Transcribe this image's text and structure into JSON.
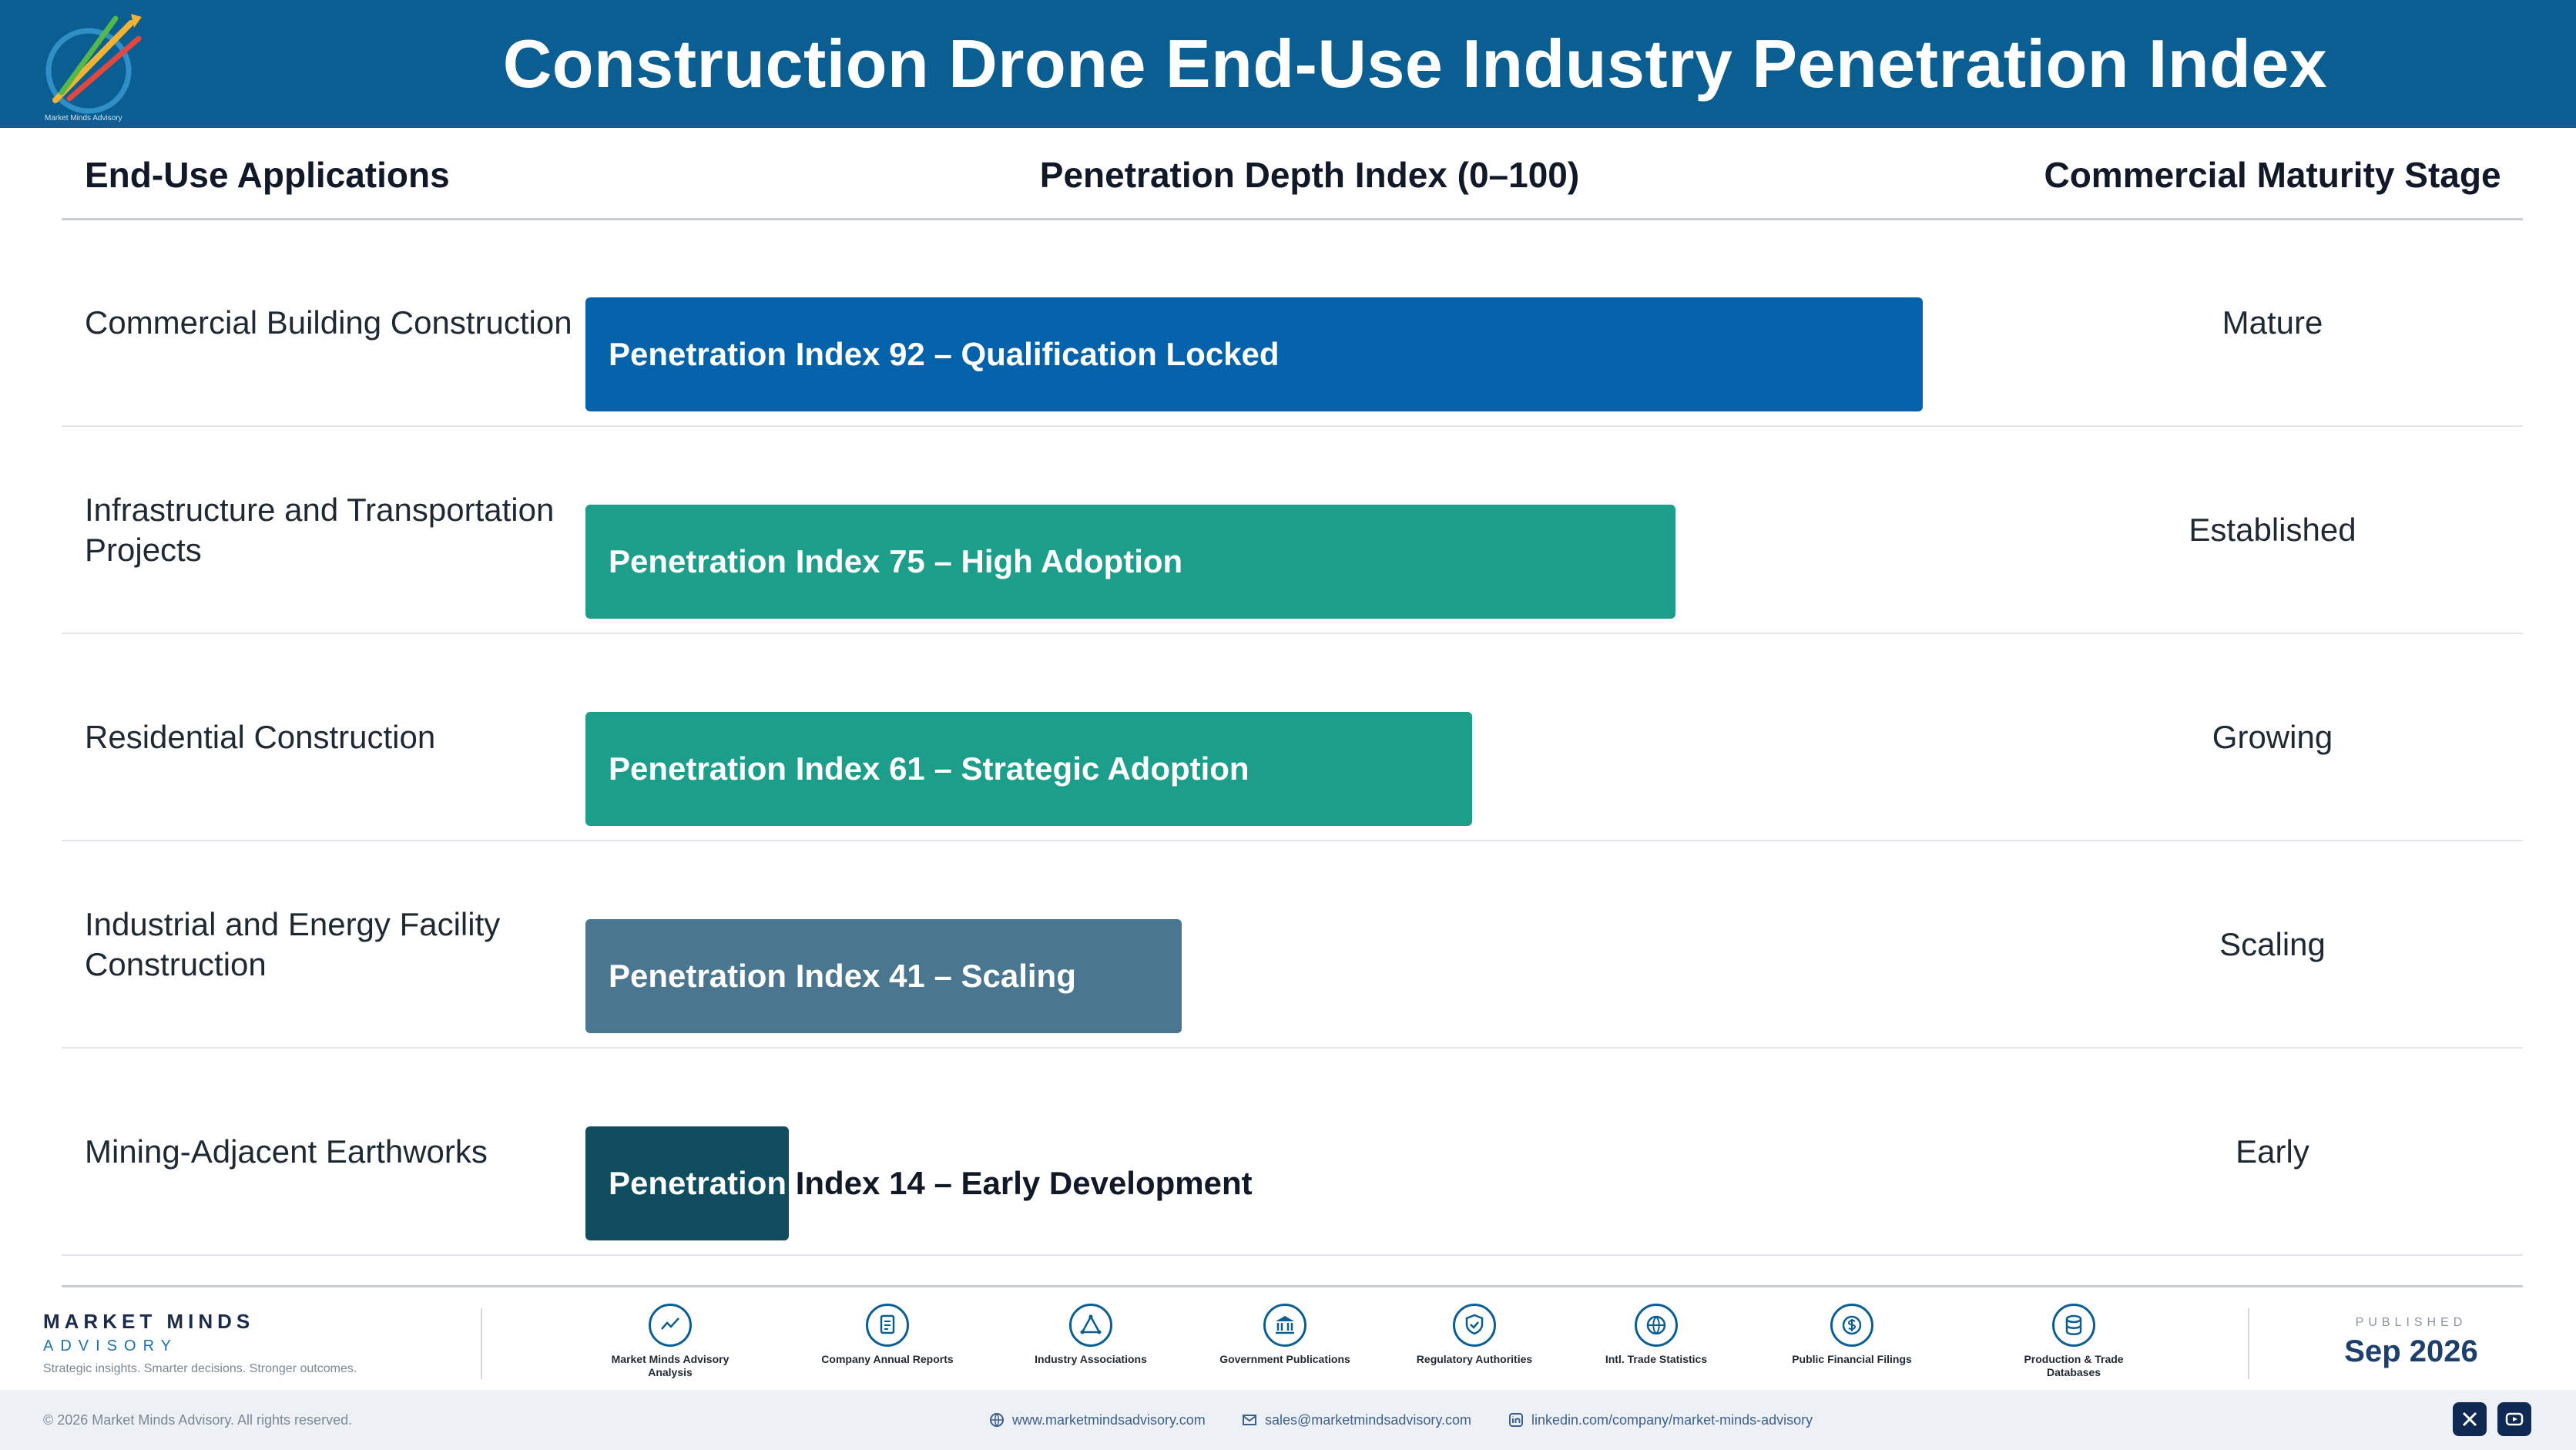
{
  "header": {
    "title": "Construction Drone End-Use Industry Penetration Index",
    "logo_text": "Market Minds Advisory"
  },
  "columns": {
    "applications": "End-Use Applications",
    "penetration": "Penetration Depth Index (0–100)",
    "maturity": "Commercial Maturity Stage"
  },
  "chart_data": {
    "type": "bar",
    "orientation": "horizontal",
    "xlabel": "Penetration Depth Index (0–100)",
    "xlim": [
      0,
      100
    ],
    "categories": [
      "Commercial Building Construction",
      "Infrastructure and Transportation Projects",
      "Residential Construction",
      "Industrial and Energy Facility Construction",
      "Mining-Adjacent Earthworks"
    ],
    "values": [
      92,
      75,
      61,
      41,
      14
    ],
    "bar_labels": [
      "Penetration Index 92 – Qualification Locked",
      "Penetration Index 75 – High Adoption",
      "Penetration Index 61 – Strategic Adoption",
      "Penetration Index 41 – Scaling",
      "Penetration Index 14 – Early Development"
    ],
    "stages": [
      "Mature",
      "Established",
      "Growing",
      "Scaling",
      "Early"
    ],
    "colors": [
      "#0462ab",
      "#1c9e8b",
      "#1c9e8b",
      "#4a7690",
      "#0e4c5e"
    ]
  },
  "footer": {
    "brand_name": "MARKET MINDS",
    "brand_sub": "ADVISORY",
    "tagline": "Strategic insights. Smarter decisions. Stronger outcomes.",
    "sources": [
      {
        "icon": "chart-line-icon",
        "label": "Market Minds Advisory Analysis"
      },
      {
        "icon": "document-icon",
        "label": "Company Annual Reports"
      },
      {
        "icon": "network-icon",
        "label": "Industry Associations"
      },
      {
        "icon": "government-building-icon",
        "label": "Government Publications"
      },
      {
        "icon": "shield-check-icon",
        "label": "Regulatory Authorities"
      },
      {
        "icon": "globe-icon",
        "label": "Intl. Trade Statistics"
      },
      {
        "icon": "coin-icon",
        "label": "Public Financial Filings"
      },
      {
        "icon": "database-icon",
        "label": "Production & Trade Databases"
      }
    ],
    "published_label": "PUBLISHED",
    "published_date": "Sep 2026"
  },
  "bottom": {
    "copyright": "© 2026 Market Minds Advisory. All rights reserved.",
    "website": "www.marketmindsadvisory.com",
    "email": "sales@marketmindsadvisory.com",
    "linkedin": "linkedin.com/company/market-minds-advisory"
  }
}
